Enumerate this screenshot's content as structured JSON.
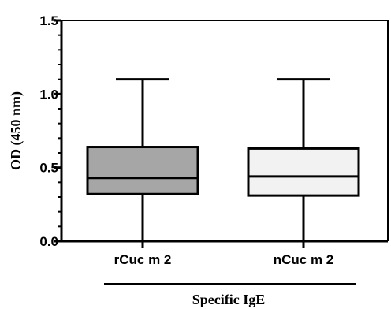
{
  "chart_data": {
    "type": "box",
    "title": "",
    "ylabel": "OD (450 nm)",
    "xlabel": "Specific IgE",
    "ylim": [
      0,
      1.5
    ],
    "yticks": [
      {
        "value": 0,
        "label": "0.0"
      },
      {
        "value": 0.5,
        "label": "0.5"
      },
      {
        "value": 1.0,
        "label": "1.0"
      },
      {
        "value": 1.5,
        "label": "1.5"
      }
    ],
    "yminor_step": 0.1,
    "categories": [
      "rCuc m 2",
      "nCuc m 2"
    ],
    "boxes": [
      {
        "name": "rCuc m 2",
        "min": 0.0,
        "q1": 0.32,
        "median": 0.43,
        "q3": 0.64,
        "max": 1.1,
        "fill": "#a6a6a6"
      },
      {
        "name": "nCuc m 2",
        "min": 0.0,
        "q1": 0.31,
        "median": 0.44,
        "q3": 0.63,
        "max": 1.1,
        "fill": "#f2f2f2"
      }
    ],
    "grid": false
  }
}
